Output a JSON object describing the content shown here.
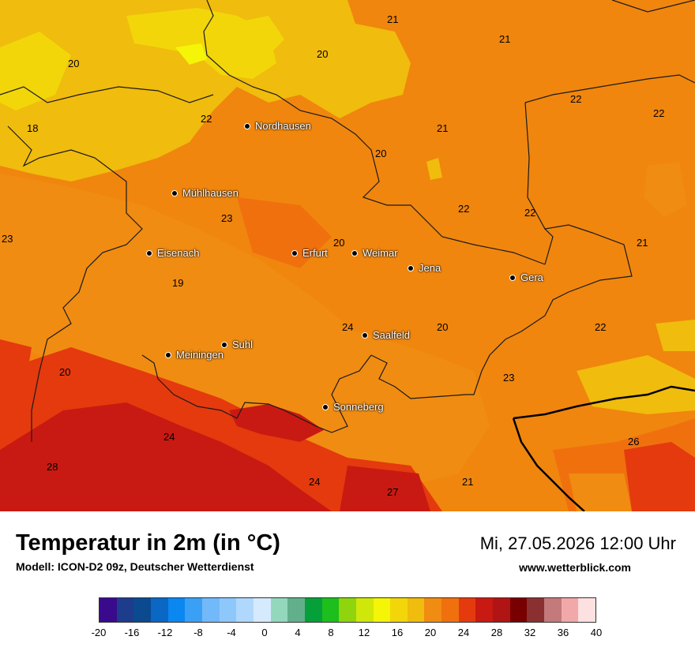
{
  "title": "Temperatur in 2m (in °C)",
  "model": "Modell: ICON-D2 09z, Deutscher Wetterdienst",
  "datetime": "Mi, 27.05.2026 12:00 Uhr",
  "website": "www.wetterblick.com",
  "cities": [
    {
      "name": "Nordhausen"
    },
    {
      "name": "Mühlhausen"
    },
    {
      "name": "Eisenach"
    },
    {
      "name": "Erfurt"
    },
    {
      "name": "Weimar"
    },
    {
      "name": "Jena"
    },
    {
      "name": "Gera"
    },
    {
      "name": "Suhl"
    },
    {
      "name": "Meiningen"
    },
    {
      "name": "Saalfeld"
    },
    {
      "name": "Sonneberg"
    }
  ],
  "temps": [
    "21",
    "21",
    "20",
    "20",
    "22",
    "22",
    "18",
    "22",
    "21",
    "20",
    "23",
    "22",
    "22",
    "21",
    "23",
    "20",
    "19",
    "24",
    "20",
    "22",
    "20",
    "23",
    "24",
    "26",
    "28",
    "24",
    "27",
    "21"
  ],
  "legend": {
    "colors": [
      "#3a0a8c",
      "#1d3c8c",
      "#0b4a8f",
      "#0a67c4",
      "#0a87f0",
      "#3aa0f5",
      "#72b9f9",
      "#8ec8fb",
      "#b0d8fc",
      "#d6eafd",
      "#93d8bd",
      "#62b08b",
      "#06a03a",
      "#1cbf1c",
      "#8fd40d",
      "#cfe80a",
      "#f5f507",
      "#f2d60a",
      "#f0bc0d",
      "#f08c12",
      "#f0700e",
      "#e43a0e",
      "#c81a12",
      "#b01414",
      "#780000",
      "#8a3030",
      "#c47a7a",
      "#f0a8a8",
      "#fde0e0"
    ],
    "ticks": [
      "-20",
      "-16",
      "-12",
      "-8",
      "-4",
      "0",
      "4",
      "8",
      "12",
      "16",
      "20",
      "24",
      "28",
      "32",
      "36",
      "40"
    ]
  }
}
